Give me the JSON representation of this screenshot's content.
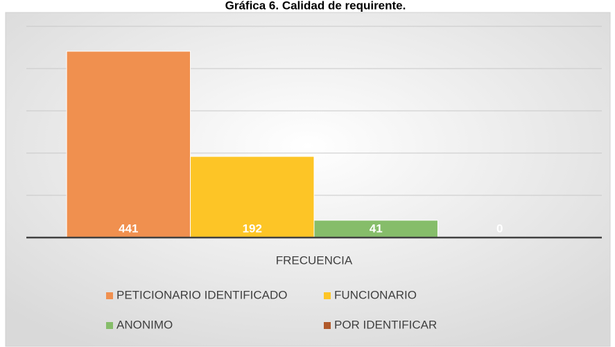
{
  "chart_data": {
    "type": "bar",
    "title": "Gráfica 6. Calidad de requirente.",
    "categories": [
      "FRECUENCIA"
    ],
    "series": [
      {
        "name": "PETICIONARIO IDENTIFICADO",
        "color": "#f0904f",
        "values": [
          441
        ]
      },
      {
        "name": "FUNCIONARIO",
        "color": "#fdc526",
        "values": [
          192
        ]
      },
      {
        "name": "ANONIMO",
        "color": "#86bd6a",
        "values": [
          41
        ]
      },
      {
        "name": "POR IDENTIFICAR",
        "color": "#b0592a",
        "values": [
          0
        ]
      }
    ],
    "ylim": [
      0,
      500
    ],
    "yticks": [
      0,
      100,
      200,
      300,
      400,
      500
    ],
    "grid": true,
    "legend": "bottom"
  }
}
